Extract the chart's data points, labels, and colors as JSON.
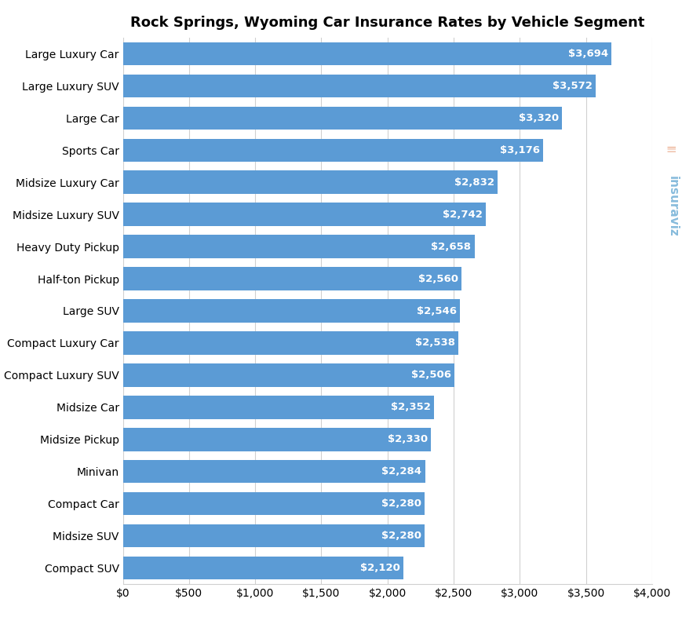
{
  "title": "Rock Springs, Wyoming Car Insurance Rates by Vehicle Segment",
  "categories": [
    "Compact SUV",
    "Midsize SUV",
    "Compact Car",
    "Minivan",
    "Midsize Pickup",
    "Midsize Car",
    "Compact Luxury SUV",
    "Compact Luxury Car",
    "Large SUV",
    "Half-ton Pickup",
    "Heavy Duty Pickup",
    "Midsize Luxury SUV",
    "Midsize Luxury Car",
    "Sports Car",
    "Large Car",
    "Large Luxury SUV",
    "Large Luxury Car"
  ],
  "values": [
    2120,
    2280,
    2280,
    2284,
    2330,
    2352,
    2506,
    2538,
    2546,
    2560,
    2658,
    2742,
    2832,
    3176,
    3320,
    3572,
    3694
  ],
  "bar_color": "#5b9bd5",
  "label_color": "#ffffff",
  "background_color": "#ffffff",
  "grid_color": "#d0d0d0",
  "title_fontsize": 13,
  "label_fontsize": 9.5,
  "tick_fontsize": 10,
  "category_fontsize": 10,
  "xlim": [
    0,
    4000
  ],
  "xticks": [
    0,
    500,
    1000,
    1500,
    2000,
    2500,
    3000,
    3500,
    4000
  ],
  "xtick_labels": [
    "$0",
    "$500",
    "$1,000",
    "$1,500",
    "$2,000",
    "$2,500",
    "$3,000",
    "$3,500",
    "$4,000"
  ],
  "watermark_text": "insuraviz",
  "watermark_color": "#7ab4d8",
  "watermark_icon_color": "#f4a460"
}
